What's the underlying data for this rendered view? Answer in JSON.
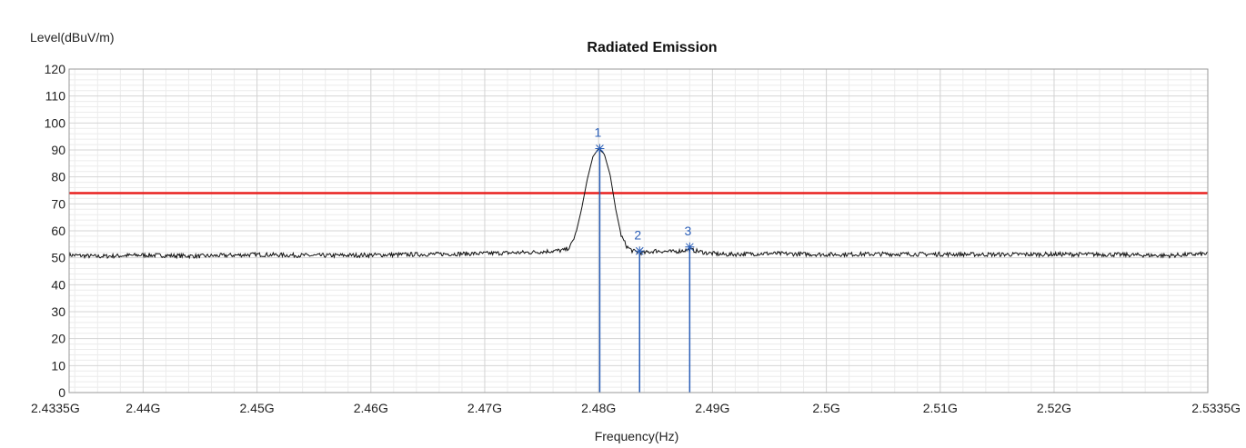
{
  "chart_data": {
    "type": "line",
    "title": "Radiated Emission",
    "ylabel": "Level(dBuV/m)",
    "xlabel": "Frequency(Hz)",
    "xlim": [
      2.4335,
      2.5335
    ],
    "ylim": [
      0,
      120
    ],
    "grid": true,
    "y_ticks": [
      0,
      10,
      20,
      30,
      40,
      50,
      60,
      70,
      80,
      90,
      100,
      110,
      120
    ],
    "x_ticks": [
      {
        "value": 2.4335,
        "label": "2.4335G"
      },
      {
        "value": 2.44,
        "label": "2.44G"
      },
      {
        "value": 2.45,
        "label": "2.45G"
      },
      {
        "value": 2.46,
        "label": "2.46G"
      },
      {
        "value": 2.47,
        "label": "2.47G"
      },
      {
        "value": 2.48,
        "label": "2.48G"
      },
      {
        "value": 2.49,
        "label": "2.49G"
      },
      {
        "value": 2.5,
        "label": "2.5G"
      },
      {
        "value": 2.51,
        "label": "2.51G"
      },
      {
        "value": 2.52,
        "label": "2.52G"
      },
      {
        "value": 2.5335,
        "label": "2.5335G"
      }
    ],
    "limit_line": {
      "level": 74,
      "color": "#e8201f"
    },
    "series": [
      {
        "color": "#111111",
        "x": [
          2.4335,
          2.436,
          2.44,
          2.445,
          2.45,
          2.455,
          2.46,
          2.465,
          2.47,
          2.474,
          2.477,
          2.4775,
          2.478,
          2.4785,
          2.479,
          2.4795,
          2.48,
          2.4805,
          2.481,
          2.4815,
          2.482,
          2.4825,
          2.483,
          2.4835,
          2.484,
          2.485,
          2.4865,
          2.488,
          2.4895,
          2.491,
          2.495,
          2.5,
          2.505,
          2.51,
          2.515,
          2.52,
          2.525,
          2.53,
          2.5335
        ],
        "y": [
          51,
          50.5,
          51,
          50.6,
          51.2,
          50.8,
          51,
          51.3,
          51.6,
          52,
          52.8,
          54,
          59,
          68,
          79,
          87.5,
          90.5,
          88.5,
          81,
          68,
          58,
          54,
          52.5,
          52,
          51.8,
          52.6,
          52.2,
          53,
          51.8,
          51.2,
          51.6,
          51.2,
          51.4,
          51.3,
          51.2,
          51.3,
          51.2,
          50.8,
          51.5
        ]
      }
    ],
    "markers": [
      {
        "label": "1",
        "x": 2.4801,
        "y": 90.5
      },
      {
        "label": "2",
        "x": 2.4836,
        "y": 52.5
      },
      {
        "label": "3",
        "x": 2.488,
        "y": 54
      }
    ],
    "marker_color": "#2b5fb8"
  }
}
